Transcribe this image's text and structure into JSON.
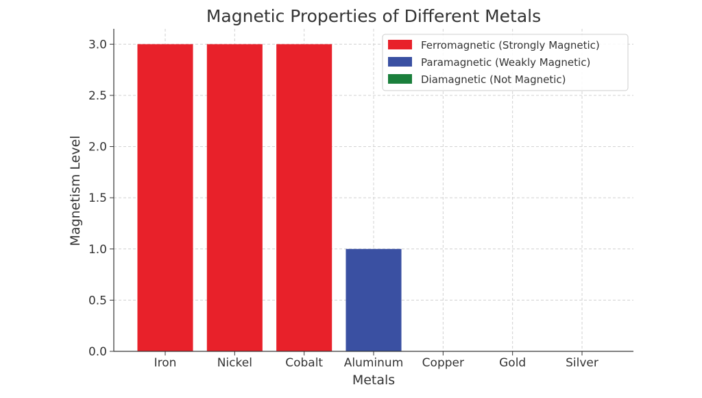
{
  "chart_data": {
    "type": "bar",
    "title": "Magnetic Properties of Different Metals",
    "xlabel": "Metals",
    "ylabel": "Magnetism Level",
    "categories": [
      "Iron",
      "Nickel",
      "Cobalt",
      "Aluminum",
      "Copper",
      "Gold",
      "Silver"
    ],
    "values": [
      3,
      3,
      3,
      1,
      0,
      0,
      0
    ],
    "bar_classes": [
      "Ferromagnetic",
      "Ferromagnetic",
      "Ferromagnetic",
      "Paramagnetic",
      "Diamagnetic",
      "Diamagnetic",
      "Diamagnetic"
    ],
    "ylim": [
      0,
      3.15
    ],
    "xlim": [
      -0.74,
      6.74
    ],
    "yticks": [
      "0.0",
      "0.5",
      "1.0",
      "1.5",
      "2.0",
      "2.5",
      "3.0"
    ],
    "grid": true,
    "legend_position": "top-right",
    "legend": [
      {
        "key": "Ferromagnetic",
        "label": "Ferromagnetic (Strongly Magnetic)",
        "color": "#e8212a"
      },
      {
        "key": "Paramagnetic",
        "label": "Paramagnetic (Weakly Magnetic)",
        "color": "#3a50a2"
      },
      {
        "key": "Diamagnetic",
        "label": "Diamagnetic (Not Magnetic)",
        "color": "#1a7f3c"
      }
    ]
  }
}
